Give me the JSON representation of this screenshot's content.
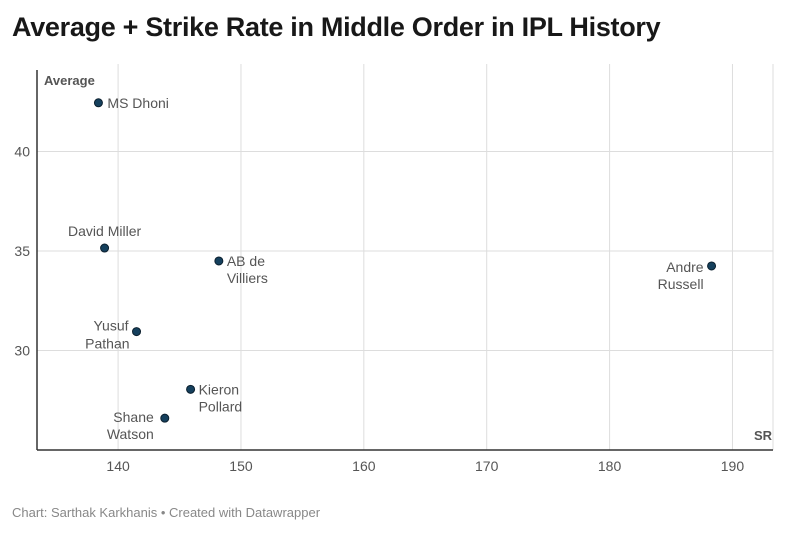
{
  "chart_data": {
    "type": "scatter",
    "title": "Average + Strike Rate in Middle Order in IPL History",
    "xlabel": "SR",
    "ylabel": "Average",
    "xlim": [
      133.4,
      193.3
    ],
    "ylim": [
      25,
      44.4
    ],
    "xticks": [
      140,
      150,
      160,
      170,
      180,
      190
    ],
    "yticks": [
      30,
      35,
      40
    ],
    "grid": true,
    "points": [
      {
        "name": "MS Dhoni",
        "lines": [
          "MS Dhoni"
        ],
        "x": 138.4,
        "y": 42.45
      },
      {
        "name": "David Miller",
        "lines": [
          "David Miller"
        ],
        "x": 138.9,
        "y": 35.15
      },
      {
        "name": "AB de Villiers",
        "lines": [
          "AB de",
          "Villiers"
        ],
        "x": 148.2,
        "y": 34.5
      },
      {
        "name": "Andre Russell",
        "lines": [
          "Andre",
          "Russell"
        ],
        "x": 188.3,
        "y": 34.25
      },
      {
        "name": "Yusuf Pathan",
        "lines": [
          "Yusuf",
          "Pathan"
        ],
        "x": 141.5,
        "y": 30.95
      },
      {
        "name": "Kieron Pollard",
        "lines": [
          "Kieron",
          "Pollard"
        ],
        "x": 145.9,
        "y": 28.05
      },
      {
        "name": "Shane Watson",
        "lines": [
          "Shane",
          "Watson"
        ],
        "x": 143.8,
        "y": 26.6
      }
    ],
    "colors": {
      "point": "#15405d",
      "grid": "#dddddd",
      "axis": "#333333"
    }
  },
  "footer": "Chart: Sarthak Karkhanis • Created with Datawrapper"
}
